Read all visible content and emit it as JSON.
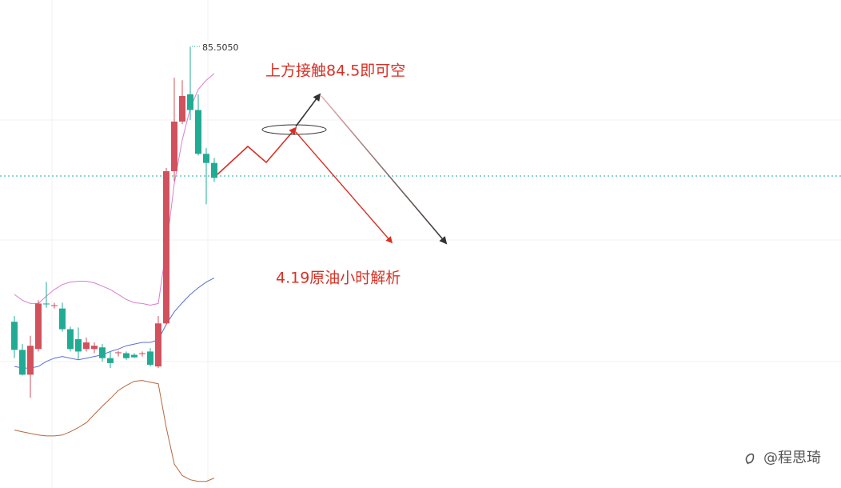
{
  "chart_data": {
    "type": "candlestick",
    "high_label": "85.5050",
    "annotations": [
      "上方接触84.5即可空",
      "4.19原油小时解析"
    ],
    "watermark": "@程思琦",
    "up_color": "#d1515c",
    "down_color": "#22ab94",
    "ylim": [
      80.17,
      86.07
    ],
    "open": [
      82.18,
      81.84,
      81.54,
      81.85,
      82.4,
      82.38,
      82.34,
      82.09,
      81.97,
      81.85,
      81.85,
      81.87,
      81.74,
      81.8,
      81.8,
      81.78,
      81.8,
      81.82,
      81.64,
      82.16,
      84.0,
      84.6,
      84.93,
      84.74,
      84.21,
      84.1
    ],
    "high": [
      82.25,
      81.91,
      82.01,
      82.44,
      82.66,
      82.41,
      82.41,
      82.12,
      82.11,
      81.99,
      81.93,
      81.91,
      81.82,
      81.83,
      81.82,
      81.8,
      81.82,
      81.86,
      82.25,
      84.04,
      85.13,
      85.1,
      85.505,
      84.93,
      84.28,
      84.16
    ],
    "low": [
      81.74,
      81.53,
      81.26,
      81.82,
      82.35,
      82.34,
      82.06,
      81.82,
      81.72,
      81.82,
      81.8,
      81.7,
      81.62,
      81.76,
      81.72,
      81.74,
      81.76,
      81.64,
      81.62,
      82.14,
      83.88,
      84.57,
      84.62,
      84.19,
      83.6,
      83.87
    ],
    "close": [
      81.84,
      81.54,
      81.89,
      82.4,
      82.39,
      82.38,
      82.09,
      81.85,
      81.82,
      81.93,
      81.89,
      81.74,
      81.68,
      81.81,
      81.74,
      81.75,
      81.8,
      81.66,
      82.16,
      84.0,
      84.6,
      84.91,
      84.74,
      84.21,
      84.1,
      83.92
    ],
    "series": [
      {
        "name": "upper",
        "color": "#d77fd0",
        "values": [
          82.51,
          82.44,
          82.4,
          82.4,
          82.49,
          82.57,
          82.63,
          82.66,
          82.67,
          82.67,
          82.65,
          82.61,
          82.57,
          82.51,
          82.45,
          82.41,
          82.4,
          82.38,
          82.4,
          83.07,
          83.85,
          84.38,
          84.76,
          84.99,
          85.1,
          85.18
        ]
      },
      {
        "name": "middle",
        "color": "#5b6fd6",
        "values": [
          81.64,
          81.62,
          81.62,
          81.64,
          81.7,
          81.74,
          81.76,
          81.74,
          81.72,
          81.74,
          81.76,
          81.78,
          81.82,
          81.85,
          81.89,
          81.91,
          81.93,
          81.93,
          81.96,
          82.15,
          82.3,
          82.41,
          82.51,
          82.59,
          82.66,
          82.71
        ]
      },
      {
        "name": "lower",
        "color": "#b5683f",
        "values": [
          80.87,
          80.85,
          80.83,
          80.81,
          80.8,
          80.8,
          80.81,
          80.85,
          80.9,
          80.96,
          81.06,
          81.16,
          81.25,
          81.35,
          81.41,
          81.46,
          81.47,
          81.45,
          81.43,
          80.9,
          80.46,
          80.32,
          80.27,
          80.25,
          80.25,
          80.29
        ]
      }
    ]
  }
}
